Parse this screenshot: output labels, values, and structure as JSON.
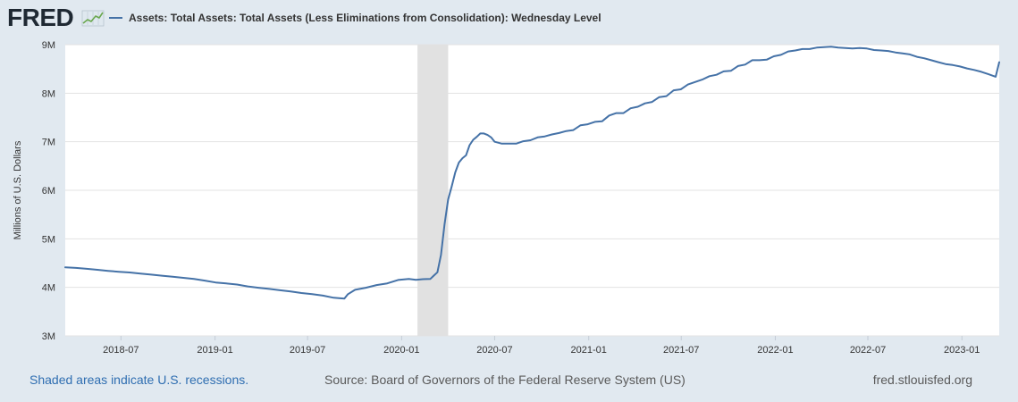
{
  "logo": {
    "text": "FRED",
    "icon": "line-chart-icon"
  },
  "footer": {
    "recession_note": "Shaded areas indicate U.S. recessions.",
    "source": "Source: Board of Governors of the Federal Reserve System (US)",
    "site": "fred.stlouisfed.org"
  },
  "colors": {
    "background": "#e1e9f0",
    "plot_background": "#ffffff",
    "link": "#2f6eb1"
  },
  "chart_data": {
    "type": "line",
    "x_scale": "time",
    "ylabel": "Millions of U.S. Dollars",
    "xlim": [
      "2018-03-14",
      "2023-03-15"
    ],
    "ylim": [
      3000000,
      9000000
    ],
    "grid": "horizontal",
    "legend": "top-left",
    "y_ticks": [
      {
        "value": 3000000,
        "label": "3M"
      },
      {
        "value": 4000000,
        "label": "4M"
      },
      {
        "value": 5000000,
        "label": "5M"
      },
      {
        "value": 6000000,
        "label": "6M"
      },
      {
        "value": 7000000,
        "label": "7M"
      },
      {
        "value": 8000000,
        "label": "8M"
      },
      {
        "value": 9000000,
        "label": "9M"
      }
    ],
    "x_ticks": [
      {
        "value": "2018-07-01",
        "label": "2018-07"
      },
      {
        "value": "2019-01-01",
        "label": "2019-01"
      },
      {
        "value": "2019-07-01",
        "label": "2019-07"
      },
      {
        "value": "2020-01-01",
        "label": "2020-01"
      },
      {
        "value": "2020-07-01",
        "label": "2020-07"
      },
      {
        "value": "2021-01-01",
        "label": "2021-01"
      },
      {
        "value": "2021-07-01",
        "label": "2021-07"
      },
      {
        "value": "2022-01-01",
        "label": "2022-01"
      },
      {
        "value": "2022-07-01",
        "label": "2022-07"
      },
      {
        "value": "2023-01-01",
        "label": "2023-01"
      }
    ],
    "recessions": [
      {
        "start": "2020-02-01",
        "end": "2020-04-01"
      }
    ],
    "recession_color": "#e1e1e1",
    "series": [
      {
        "name": "Assets: Total Assets: Total Assets (Less Eliminations from Consolidation): Wednesday Level",
        "color": "#4572a7",
        "x": [
          "2018-03-14",
          "2018-04-04",
          "2018-04-25",
          "2018-05-16",
          "2018-06-06",
          "2018-06-27",
          "2018-07-18",
          "2018-08-08",
          "2018-08-29",
          "2018-09-19",
          "2018-10-10",
          "2018-10-31",
          "2018-11-21",
          "2018-12-12",
          "2019-01-02",
          "2019-01-23",
          "2019-02-13",
          "2019-03-06",
          "2019-03-27",
          "2019-04-17",
          "2019-05-08",
          "2019-05-29",
          "2019-06-19",
          "2019-07-10",
          "2019-07-31",
          "2019-08-21",
          "2019-09-11",
          "2019-09-18",
          "2019-10-02",
          "2019-10-23",
          "2019-11-13",
          "2019-12-04",
          "2019-12-25",
          "2020-01-15",
          "2020-01-29",
          "2020-02-12",
          "2020-02-26",
          "2020-03-04",
          "2020-03-11",
          "2020-03-18",
          "2020-03-25",
          "2020-04-01",
          "2020-04-08",
          "2020-04-15",
          "2020-04-22",
          "2020-04-29",
          "2020-05-06",
          "2020-05-13",
          "2020-05-20",
          "2020-05-27",
          "2020-06-03",
          "2020-06-10",
          "2020-06-17",
          "2020-06-24",
          "2020-07-01",
          "2020-07-15",
          "2020-07-29",
          "2020-08-12",
          "2020-08-26",
          "2020-09-09",
          "2020-09-23",
          "2020-10-07",
          "2020-10-21",
          "2020-11-04",
          "2020-11-18",
          "2020-12-02",
          "2020-12-16",
          "2020-12-30",
          "2021-01-13",
          "2021-01-27",
          "2021-02-10",
          "2021-02-24",
          "2021-03-10",
          "2021-03-24",
          "2021-04-07",
          "2021-04-21",
          "2021-05-05",
          "2021-05-19",
          "2021-06-02",
          "2021-06-16",
          "2021-06-30",
          "2021-07-14",
          "2021-07-28",
          "2021-08-11",
          "2021-08-25",
          "2021-09-08",
          "2021-09-22",
          "2021-10-06",
          "2021-10-20",
          "2021-11-03",
          "2021-11-17",
          "2021-12-01",
          "2021-12-15",
          "2021-12-29",
          "2022-01-12",
          "2022-01-26",
          "2022-02-09",
          "2022-02-23",
          "2022-03-09",
          "2022-03-23",
          "2022-04-06",
          "2022-04-20",
          "2022-05-04",
          "2022-05-18",
          "2022-06-01",
          "2022-06-15",
          "2022-06-29",
          "2022-07-13",
          "2022-07-27",
          "2022-08-10",
          "2022-08-24",
          "2022-09-07",
          "2022-09-21",
          "2022-10-05",
          "2022-10-19",
          "2022-11-02",
          "2022-11-16",
          "2022-11-30",
          "2022-12-14",
          "2022-12-28",
          "2023-01-11",
          "2023-01-25",
          "2023-02-08",
          "2023-02-22",
          "2023-03-08",
          "2023-03-15"
        ],
        "y": [
          4414000,
          4400000,
          4382000,
          4362000,
          4340000,
          4322000,
          4306000,
          4282000,
          4262000,
          4240000,
          4218000,
          4196000,
          4172000,
          4140000,
          4100000,
          4080000,
          4058000,
          4020000,
          3992000,
          3968000,
          3940000,
          3914000,
          3884000,
          3862000,
          3830000,
          3786000,
          3770000,
          3860000,
          3950000,
          3992000,
          4048000,
          4082000,
          4152000,
          4172000,
          4154000,
          4168000,
          4172000,
          4242000,
          4311000,
          4670000,
          5300000,
          5810000,
          6080000,
          6370000,
          6570000,
          6660000,
          6720000,
          6930000,
          7040000,
          7100000,
          7170000,
          7170000,
          7140000,
          7090000,
          7000000,
          6960000,
          6960000,
          6960000,
          7010000,
          7030000,
          7090000,
          7110000,
          7150000,
          7180000,
          7220000,
          7240000,
          7340000,
          7360000,
          7410000,
          7420000,
          7540000,
          7590000,
          7590000,
          7690000,
          7720000,
          7790000,
          7820000,
          7920000,
          7940000,
          8060000,
          8080000,
          8180000,
          8230000,
          8280000,
          8350000,
          8380000,
          8450000,
          8460000,
          8560000,
          8590000,
          8680000,
          8680000,
          8690000,
          8760000,
          8790000,
          8860000,
          8880000,
          8910000,
          8910000,
          8940000,
          8950000,
          8960000,
          8940000,
          8930000,
          8920000,
          8930000,
          8920000,
          8890000,
          8880000,
          8870000,
          8840000,
          8820000,
          8800000,
          8750000,
          8720000,
          8680000,
          8640000,
          8600000,
          8580000,
          8550000,
          8510000,
          8480000,
          8440000,
          8390000,
          8340000,
          8640000
        ]
      }
    ]
  }
}
